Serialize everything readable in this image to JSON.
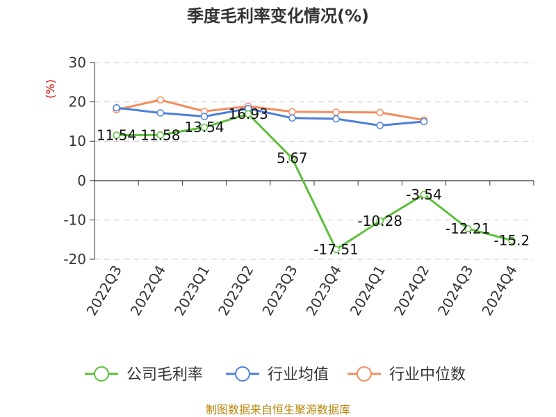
{
  "chart_data": {
    "type": "line",
    "title": "季度毛利率变化情况(%)",
    "ylabel": "(%)",
    "xlabel": "",
    "categories": [
      "2022Q3",
      "2022Q4",
      "2023Q1",
      "2023Q2",
      "2023Q3",
      "2023Q4",
      "2024Q1",
      "2024Q2",
      "2024Q3",
      "2024Q4"
    ],
    "ylim": [
      -20,
      30
    ],
    "yticks": [
      30,
      20,
      10,
      0,
      -10,
      -20
    ],
    "grid": true,
    "legend_position": "bottom",
    "series": [
      {
        "name": "公司毛利率",
        "color": "#5cc03a",
        "values": [
          11.54,
          11.58,
          13.54,
          16.93,
          5.67,
          -17.51,
          -10.28,
          -3.54,
          -12.21,
          -15.2
        ],
        "labels": [
          "11.54",
          "11.58",
          "13.54",
          "16.93",
          "5.67",
          "-17.51",
          "-10.28",
          "-3.54",
          "-12.21",
          "-15.2"
        ]
      },
      {
        "name": "行业均值",
        "color": "#4a7fdc",
        "values": [
          18.5,
          17.2,
          16.3,
          18.3,
          15.9,
          15.7,
          14.0,
          15.0,
          null,
          null
        ]
      },
      {
        "name": "行业中位数",
        "color": "#f48c5c",
        "values": [
          18.0,
          20.5,
          17.6,
          18.9,
          17.5,
          17.4,
          17.3,
          15.4,
          null,
          null
        ]
      }
    ]
  },
  "source": "制图数据来自恒生聚源数据库"
}
